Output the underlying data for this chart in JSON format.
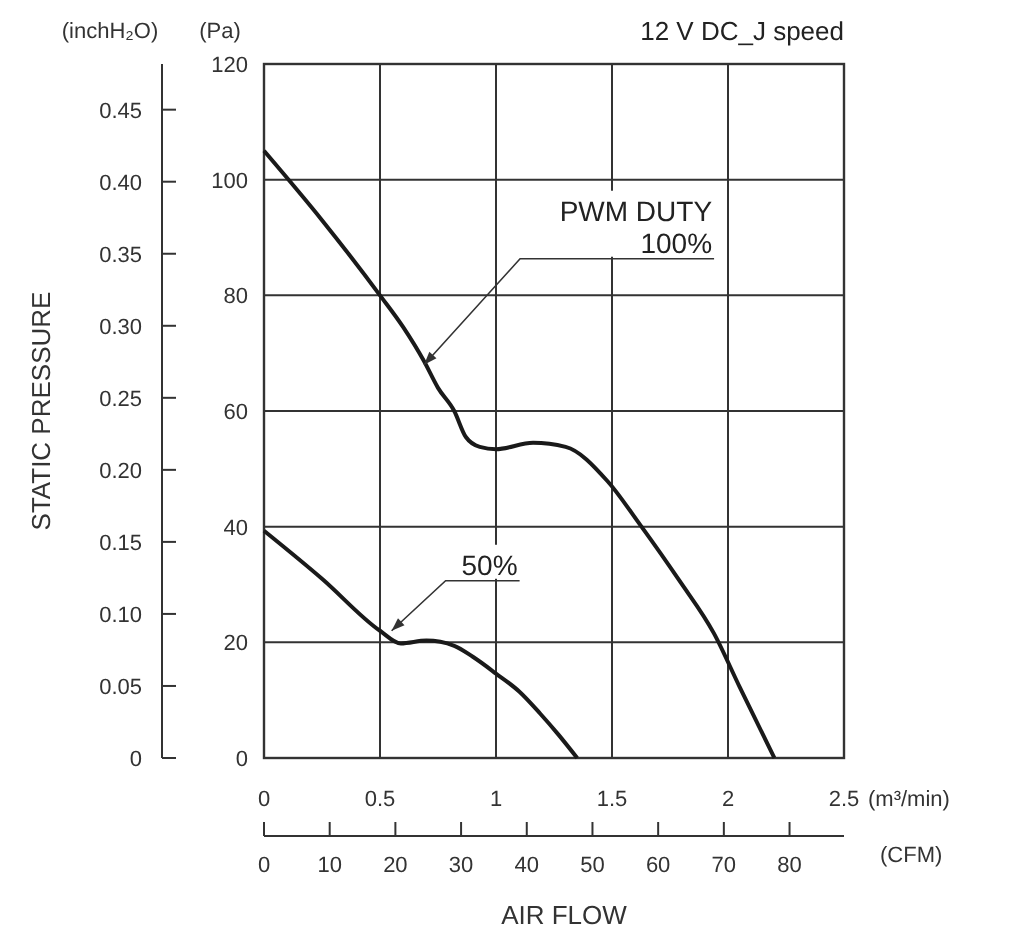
{
  "chart_data": {
    "type": "line",
    "title": "12 V DC_J speed",
    "xlabel": "AIR FLOW",
    "y2label": "(inchH₂O)",
    "x2label": "(CFM)",
    "annotations": [
      "(Pa)",
      "(m³/min)",
      "STATIC PRESSURE",
      {
        "text": "PWM DUTY\n100%",
        "x": 0.69,
        "y": 68
      },
      {
        "text": "50%",
        "x": 0.55,
        "y": 22
      }
    ],
    "xlim": [
      0,
      2.5
    ],
    "xticks": [
      0,
      0.5,
      1,
      1.5,
      2,
      2.5
    ],
    "ylim": [
      0,
      120
    ],
    "yticks": [
      0,
      20,
      40,
      60,
      80,
      100,
      120
    ],
    "y2lim": [
      0,
      0.4817
    ],
    "y2ticks": [
      0,
      0.05,
      {
        "value": 0.1,
        "label": "0.10"
      },
      0.15,
      {
        "value": 0.2,
        "label": "0.20"
      },
      0.25,
      {
        "value": 0.3,
        "label": "0.30"
      },
      0.35,
      {
        "value": 0.4,
        "label": "0.40"
      },
      0.45
    ],
    "x2lim": [
      0,
      88.29
    ],
    "x2ticks": [
      0,
      10,
      20,
      30,
      40,
      50,
      60,
      70,
      80
    ],
    "grid": true,
    "line_style": "solid",
    "series": [
      {
        "color": "#1a1a1a",
        "x": [
          0,
          0.25,
          0.5,
          0.6,
          0.69,
          0.75,
          0.82,
          0.87,
          0.93,
          1.0,
          1.16,
          1.3,
          1.48,
          1.62,
          1.79,
          1.94,
          2.05,
          2.2
        ],
        "values": [
          105,
          93,
          80,
          74.5,
          68.6,
          64,
          60,
          55.5,
          53.8,
          53.4,
          54.5,
          53.8,
          47.9,
          40.4,
          30.7,
          21.5,
          12.3,
          0
        ]
      },
      {
        "color": "#1a1a1a",
        "x": [
          0,
          0.25,
          0.5,
          0.59,
          0.7,
          0.82,
          0.9,
          1.0,
          1.1,
          1.19,
          1.27,
          1.35
        ],
        "values": [
          39.3,
          31,
          22,
          19.8,
          20.3,
          19.4,
          17.5,
          14.6,
          11.5,
          7.7,
          4,
          0
        ]
      }
    ]
  }
}
